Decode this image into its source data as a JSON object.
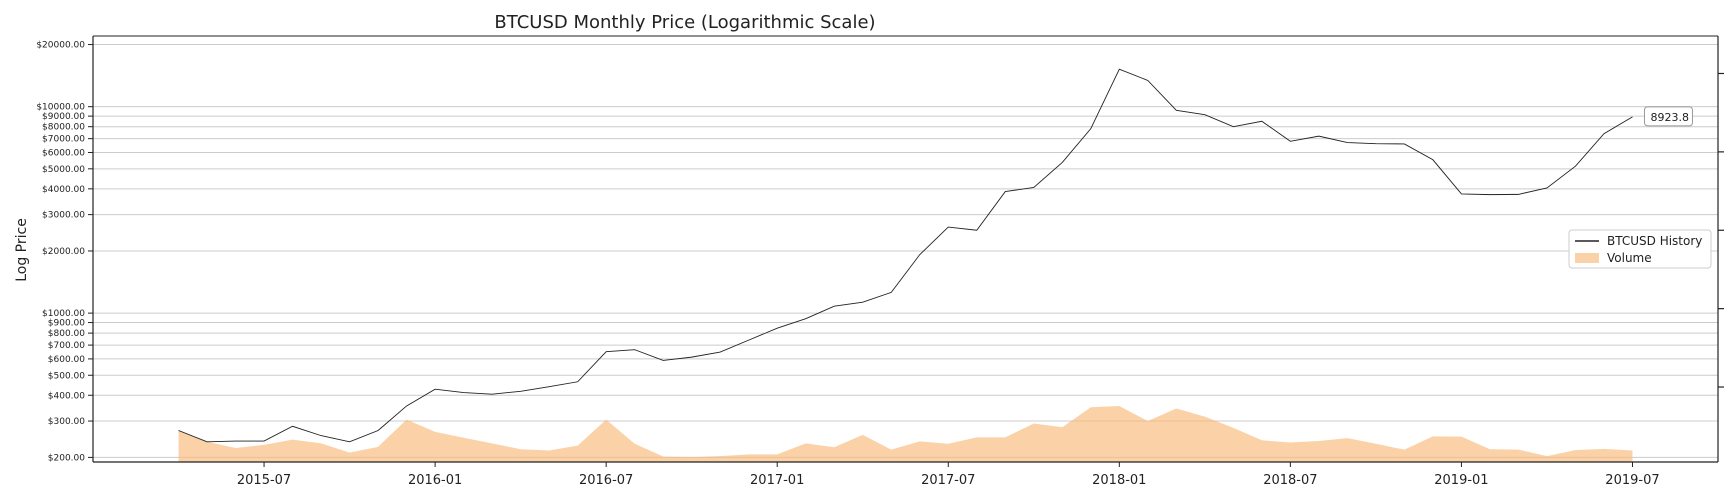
{
  "chart_data": {
    "type": "line",
    "title": "BTCUSD Monthly Price (Logarithmic Scale)",
    "ylabel": "Log Price",
    "xlabel": "",
    "y_scale": "log",
    "ylim": [
      190,
      22000
    ],
    "y_ticks": [
      200,
      300,
      400,
      500,
      600,
      700,
      800,
      900,
      1000,
      2000,
      3000,
      4000,
      5000,
      6000,
      7000,
      8000,
      9000,
      10000,
      20000
    ],
    "y_tick_labels": [
      "$200.00",
      "$300.00",
      "$400.00",
      "$500.00",
      "$600.00",
      "$700.00",
      "$800.00",
      "$900.00",
      "$1000.00",
      "$2000.00",
      "$3000.00",
      "$4000.00",
      "$5000.00",
      "$6000.00",
      "$7000.00",
      "$8000.00",
      "$9000.00",
      "$10000.00",
      "$20000.00"
    ],
    "xlim": [
      "2015-01",
      "2019-10"
    ],
    "x_ticks": [
      "2015-07",
      "2016-01",
      "2016-07",
      "2017-01",
      "2017-07",
      "2018-01",
      "2018-07",
      "2019-01",
      "2019-07"
    ],
    "grid": "horizontal",
    "legend_position": "center-right",
    "x": [
      "2015-04",
      "2015-05",
      "2015-06",
      "2015-07",
      "2015-08",
      "2015-09",
      "2015-10",
      "2015-11",
      "2015-12",
      "2016-01",
      "2016-02",
      "2016-03",
      "2016-04",
      "2016-05",
      "2016-06",
      "2016-07",
      "2016-08",
      "2016-09",
      "2016-10",
      "2016-11",
      "2016-12",
      "2017-01",
      "2017-02",
      "2017-03",
      "2017-04",
      "2017-05",
      "2017-06",
      "2017-07",
      "2017-08",
      "2017-09",
      "2017-10",
      "2017-11",
      "2017-12",
      "2018-01",
      "2018-02",
      "2018-03",
      "2018-04",
      "2018-05",
      "2018-06",
      "2018-07",
      "2018-08",
      "2018-09",
      "2018-10",
      "2018-11",
      "2018-12",
      "2019-01",
      "2019-02",
      "2019-03",
      "2019-04",
      "2019-05",
      "2019-06",
      "2019-07"
    ],
    "series": [
      {
        "name": "BTCUSD History",
        "kind": "line",
        "color": "#222222",
        "values": [
          270,
          238,
          240,
          240,
          283,
          255,
          238,
          270,
          355,
          428,
          412,
          405,
          418,
          440,
          465,
          650,
          665,
          590,
          612,
          648,
          740,
          845,
          940,
          1080,
          1130,
          1260,
          1920,
          2610,
          2520,
          3880,
          4060,
          5370,
          7830,
          15200,
          13400,
          9600,
          9150,
          8000,
          8500,
          6800,
          7200,
          6700,
          6620,
          6600,
          5530,
          3780,
          3750,
          3760,
          4040,
          5150,
          7400,
          8923.8
        ]
      },
      {
        "name": "Volume",
        "kind": "area",
        "color": "#f9b978",
        "values": [
          272,
          238,
          222,
          230,
          244,
          234,
          211,
          225,
          305,
          266,
          249,
          234,
          219,
          216,
          228,
          305,
          233,
          202,
          201,
          203,
          207,
          207,
          234,
          224,
          257,
          218,
          239,
          233,
          250,
          250,
          292,
          280,
          350,
          355,
          300,
          345,
          315,
          278,
          242,
          236,
          240,
          248,
          233,
          218,
          253,
          252,
          219,
          218,
          203,
          217,
          220,
          216
        ]
      }
    ],
    "annotations": [
      {
        "x": "2019-07",
        "y": 8923.8,
        "text": "8923.8"
      }
    ],
    "legend": [
      "BTCUSD History",
      "Volume"
    ]
  }
}
